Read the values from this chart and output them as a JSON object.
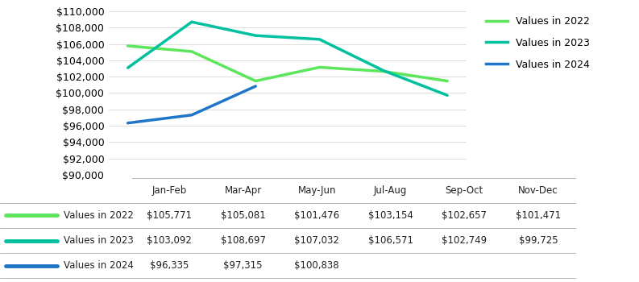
{
  "categories": [
    "Jan-Feb",
    "Mar-Apr",
    "May-Jun",
    "Jul-Aug",
    "Sep-Oct",
    "Nov-Dec"
  ],
  "series": [
    {
      "label": "Values in 2022",
      "color": "#5BE65B",
      "values": [
        105771,
        105081,
        101476,
        103154,
        102657,
        101471
      ]
    },
    {
      "label": "Values in 2023",
      "color": "#00C0A0",
      "values": [
        103092,
        108697,
        107032,
        106571,
        102749,
        99725
      ]
    },
    {
      "label": "Values in 2024",
      "color": "#1F75C8",
      "values": [
        96335,
        97315,
        100838,
        null,
        null,
        null
      ]
    }
  ],
  "ylim": [
    90000,
    110000
  ],
  "ytick_step": 2000,
  "table_header": [
    "Jan-Feb",
    "Mar-Apr",
    "May-Jun",
    "Jul-Aug",
    "Sep-Oct",
    "Nov-Dec"
  ],
  "table_data": [
    [
      "$105,771",
      "$105,081",
      "$101,476",
      "$103,154",
      "$102,657",
      "$101,471"
    ],
    [
      "$103,092",
      "$108,697",
      "$107,032",
      "$106,571",
      "$102,749",
      "$99,725"
    ],
    [
      "$96,335",
      "$97,315",
      "$100,838",
      "",
      "",
      ""
    ]
  ],
  "row_labels": [
    "Values in 2022",
    "Values in 2023",
    "Values in 2024"
  ],
  "line_width": 2.5,
  "font_size_tick": 9,
  "font_size_table": 8.5,
  "font_size_legend": 9
}
